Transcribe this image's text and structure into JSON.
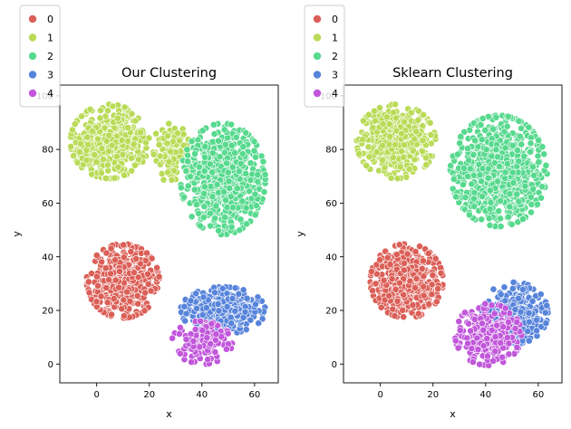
{
  "chart_data": [
    {
      "type": "scatter",
      "title": "Our Clustering",
      "xlabel": "x",
      "ylabel": "y",
      "xlim": [
        -14,
        69
      ],
      "ylim": [
        -7,
        104
      ],
      "xticks": [
        "0",
        "20",
        "40",
        "60"
      ],
      "xtick_values": [
        0,
        20,
        40,
        60
      ],
      "yticks": [
        "0",
        "20",
        "40",
        "60",
        "80",
        "100"
      ],
      "ytick_values": [
        0,
        20,
        40,
        60,
        80,
        100
      ],
      "grid": false,
      "legend_placement": "upper-left, outside above",
      "legend_title": "",
      "series": [
        {
          "name": "0",
          "color": "#db5f57",
          "clusters": [
            {
              "cx": 10,
              "cy": 31,
              "sx": 6,
              "sy": 6,
              "n": 520
            }
          ]
        },
        {
          "name": "1",
          "color": "#b9db57",
          "clusters": [
            {
              "cx": 5,
              "cy": 83,
              "sx": 6.5,
              "sy": 6,
              "n": 520
            },
            {
              "cx": 29,
              "cy": 79,
              "sx": 3.5,
              "sy": 5,
              "n": 120
            }
          ]
        },
        {
          "name": "2",
          "color": "#57d98e",
          "clusters": [
            {
              "cx": 48,
              "cy": 69,
              "sx": 7,
              "sy": 9,
              "n": 700
            }
          ]
        },
        {
          "name": "3",
          "color": "#5784db",
          "clusters": [
            {
              "cx": 48,
              "cy": 20,
              "sx": 7,
              "sy": 3.8,
              "n": 420
            }
          ]
        },
        {
          "name": "4",
          "color": "#c157db",
          "clusters": [
            {
              "cx": 40,
              "cy": 8,
              "sx": 5,
              "sy": 3.5,
              "n": 150
            }
          ]
        }
      ]
    },
    {
      "type": "scatter",
      "title": "Sklearn Clustering",
      "xlabel": "x",
      "ylabel": "y",
      "xlim": [
        -14,
        69
      ],
      "ylim": [
        -7,
        104
      ],
      "xticks": [
        "0",
        "20",
        "40",
        "60"
      ],
      "xtick_values": [
        0,
        20,
        40,
        60
      ],
      "yticks": [
        "0",
        "20",
        "40",
        "60",
        "80",
        "100"
      ],
      "ytick_values": [
        0,
        20,
        40,
        60,
        80,
        100
      ],
      "grid": false,
      "legend_placement": "upper-left, outside above",
      "legend_title": "",
      "series": [
        {
          "name": "0",
          "color": "#db5f57",
          "clusters": [
            {
              "cx": 10,
              "cy": 31,
              "sx": 6,
              "sy": 6,
              "n": 520
            }
          ]
        },
        {
          "name": "1",
          "color": "#b9db57",
          "clusters": [
            {
              "cx": 6,
              "cy": 83,
              "sx": 6.5,
              "sy": 6,
              "n": 520
            }
          ]
        },
        {
          "name": "2",
          "color": "#57d98e",
          "clusters": [
            {
              "cx": 45,
              "cy": 72,
              "sx": 8,
              "sy": 9,
              "n": 820
            }
          ]
        },
        {
          "name": "3",
          "color": "#5784db",
          "clusters": [
            {
              "cx": 51,
              "cy": 19,
              "sx": 5.5,
              "sy": 5,
              "n": 320
            }
          ]
        },
        {
          "name": "4",
          "color": "#c157db",
          "clusters": [
            {
              "cx": 41,
              "cy": 11,
              "sx": 5.5,
              "sy": 5,
              "n": 260
            }
          ]
        }
      ]
    }
  ]
}
